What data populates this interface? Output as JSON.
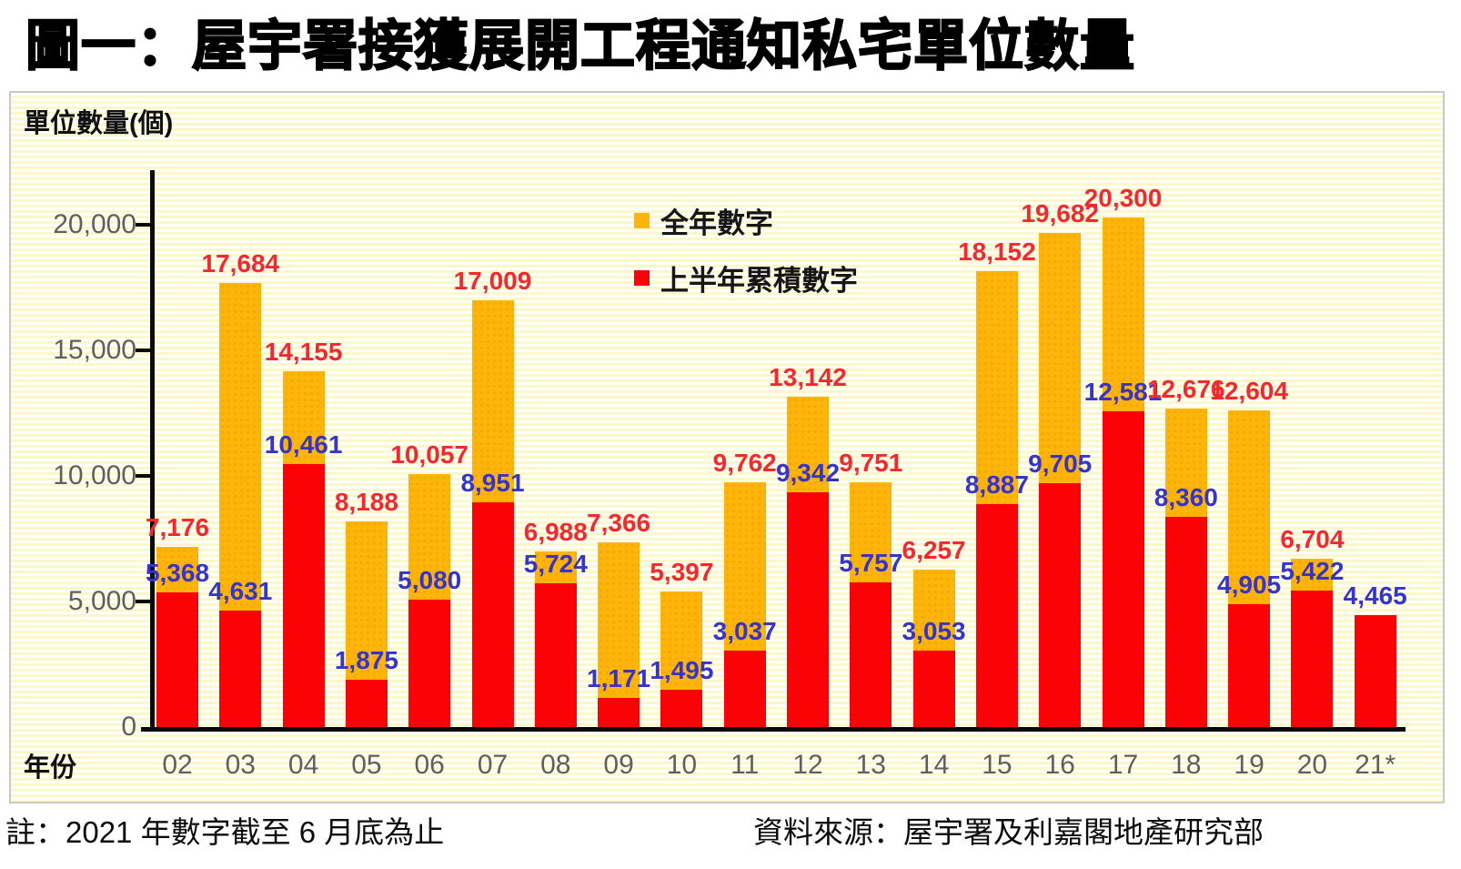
{
  "title": "圖一：屋宇署接獲展開工程通知私宅單位數量",
  "chart_data": {
    "type": "bar",
    "title": "圖一：屋宇署接獲展開工程通知私宅單位數量",
    "y_axis_label": "單位數量(個)",
    "x_axis_label": "年份",
    "ylim": [
      0,
      20000
    ],
    "y_ticks": [
      0,
      5000,
      10000,
      15000,
      20000
    ],
    "grid": false,
    "legend_position": "inside-top-center",
    "bar_style": "overlapped",
    "categories": [
      "02",
      "03",
      "04",
      "05",
      "06",
      "07",
      "08",
      "09",
      "10",
      "11",
      "12",
      "13",
      "14",
      "15",
      "16",
      "17",
      "18",
      "19",
      "20",
      "21*"
    ],
    "series": [
      {
        "name": "全年數字",
        "color": "#feb408",
        "label_color": "#f5282d",
        "values": [
          7176,
          17684,
          14155,
          8188,
          10057,
          17009,
          6988,
          7366,
          5397,
          9762,
          13142,
          9751,
          6257,
          18152,
          19682,
          20300,
          12676,
          12604,
          6704,
          null
        ]
      },
      {
        "name": "上半年累積數字",
        "color": "#fb0306",
        "label_color": "#3535cd",
        "values": [
          5368,
          4631,
          10461,
          1875,
          5080,
          8951,
          5724,
          1171,
          1495,
          3037,
          9342,
          5757,
          3053,
          8887,
          9705,
          12581,
          8360,
          4905,
          5422,
          4465
        ]
      }
    ]
  },
  "footer": {
    "note": "註：2021 年數字截至 6 月底為止",
    "source": "資料來源：屋宇署及利嘉閣地產研究部"
  }
}
